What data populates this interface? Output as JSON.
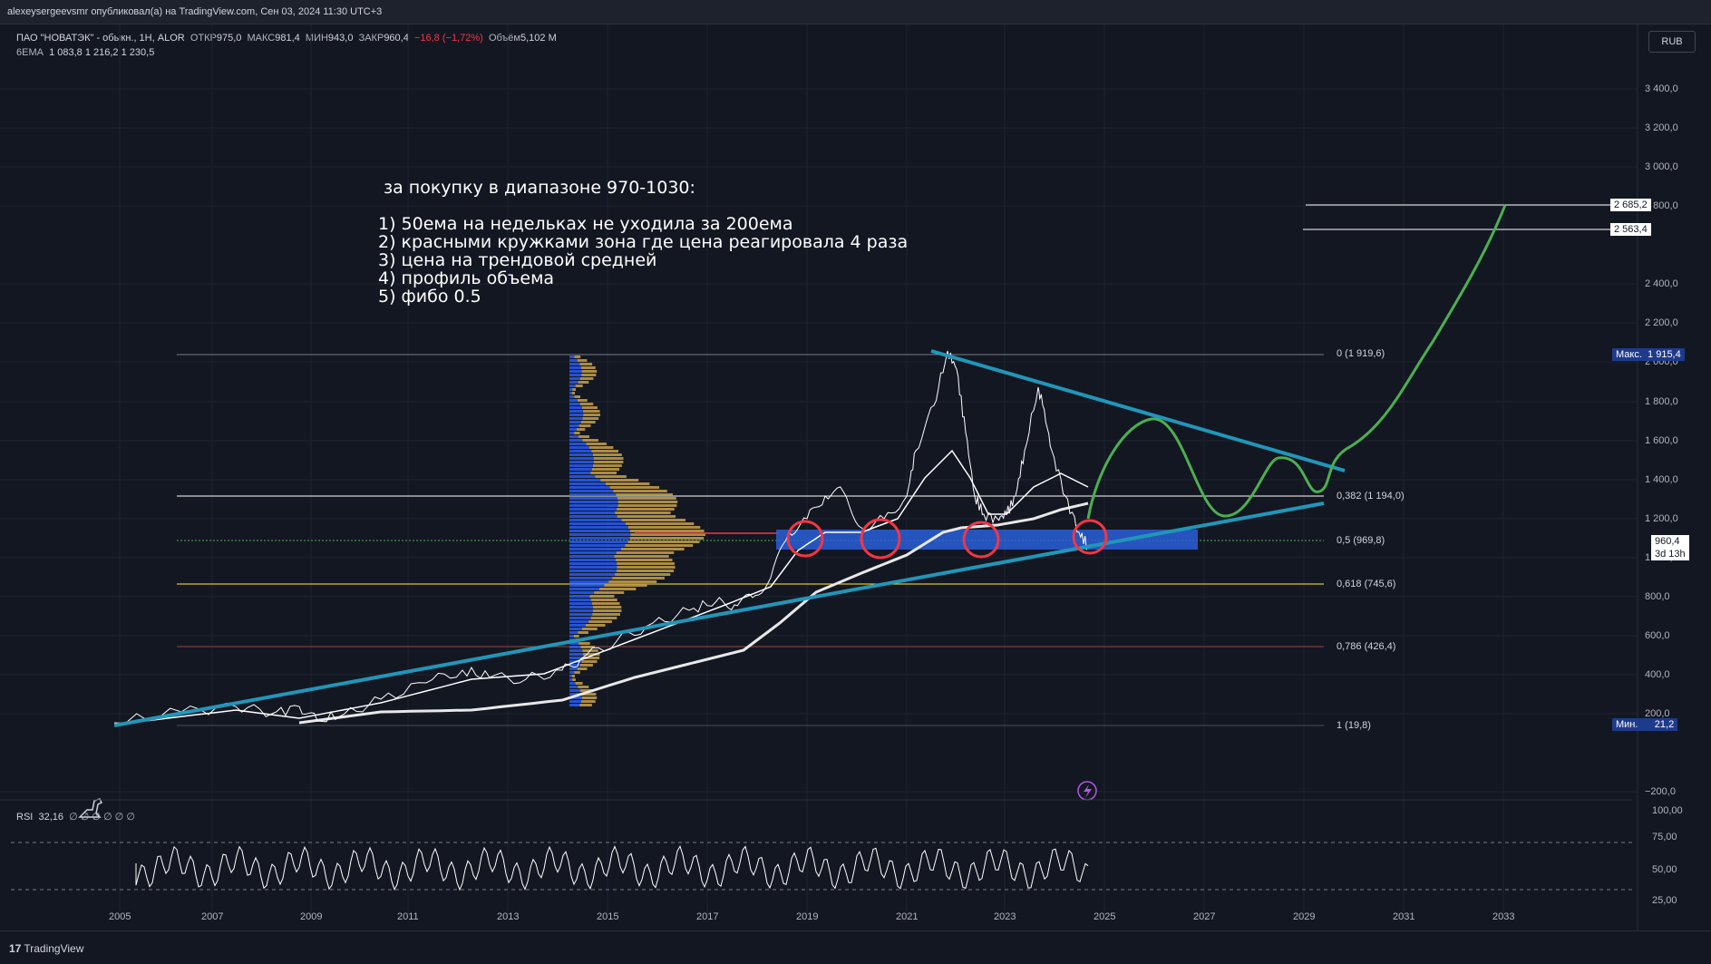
{
  "topbar": {
    "text": "alexeysergeevsmr опубликовал(а) на TradingView.com, Сен 03, 2024 11:30 UTC+3"
  },
  "legend": {
    "symbol": "ПАО \"НОВАТЭК\" - обыкн., 1Н, ALOR",
    "open_label": "ОТКР",
    "open": "975,0",
    "high_label": "МАКС",
    "high": "981,4",
    "low_label": "МИН",
    "low": "943,0",
    "close_label": "ЗАКР",
    "close": "960,4",
    "change": "−16,8 (−1,72%)",
    "volume_label": "Объём",
    "volume": "5,102 M",
    "ema_label": "6EMA",
    "ema_values": "1 083,8  1 216,2  1 230,5"
  },
  "currency": "RUB",
  "note": {
    "title": "за покупку в диапазоне 970-1030:",
    "lines": [
      "1) 50ема на недельках не уходила за 200ема",
      "2) красными кружками зона где цена реагировала 4 раза",
      "3) цена на трендовой средней",
      "4) профиль объема",
      "5) фибо 0.5"
    ]
  },
  "price_axis": [
    "3 400,0",
    "3 200,0",
    "3 000,0",
    "2 800,0",
    "2 400,0",
    "2 200,0",
    "2 000,0",
    "1 800,0",
    "1 600,0",
    "1 400,0",
    "1 200,0",
    "1 000,0",
    "800,0",
    "600,0",
    "400,0",
    "200,0",
    "−200,0"
  ],
  "rsi_axis": [
    "100,00",
    "75,00",
    "50,00",
    "25,00"
  ],
  "time_axis": [
    "2005",
    "2007",
    "2009",
    "2011",
    "2013",
    "2015",
    "2017",
    "2019",
    "2021",
    "2023",
    "2025",
    "2027",
    "2029",
    "2031",
    "2033"
  ],
  "fib_levels": [
    {
      "label": "0 (1 919,6)",
      "color": "#787b86"
    },
    {
      "label": "0,382 (1 194,0)",
      "color": "#ffffff"
    },
    {
      "label": "0,5 (969,8)",
      "color": "#4caf50"
    },
    {
      "label": "0,618 (745,6)",
      "color": "#ffeb3b"
    },
    {
      "label": "0,786 (426,4)",
      "color": "#a0433a"
    },
    {
      "label": "1 (19,8)",
      "color": "#787b86"
    }
  ],
  "price_tags": {
    "max_label": "Макс.",
    "max": "1 915,4",
    "min_label": "Мин.",
    "min": "21,2",
    "last": "960,4",
    "countdown": "3d 13h",
    "target1": "2 685,2",
    "target2": "2 563,4"
  },
  "rsi": {
    "label": "RSI",
    "value": "32,16",
    "extras": "∅ ∅ ∅ ∅ ∅ ∅"
  },
  "footer": {
    "brand": "TradingView"
  },
  "colors": {
    "background": "#131722",
    "trendline": "#2196b8",
    "projection": "#4caf50",
    "zone": "#2a5fd8",
    "circles": "#f23645"
  }
}
